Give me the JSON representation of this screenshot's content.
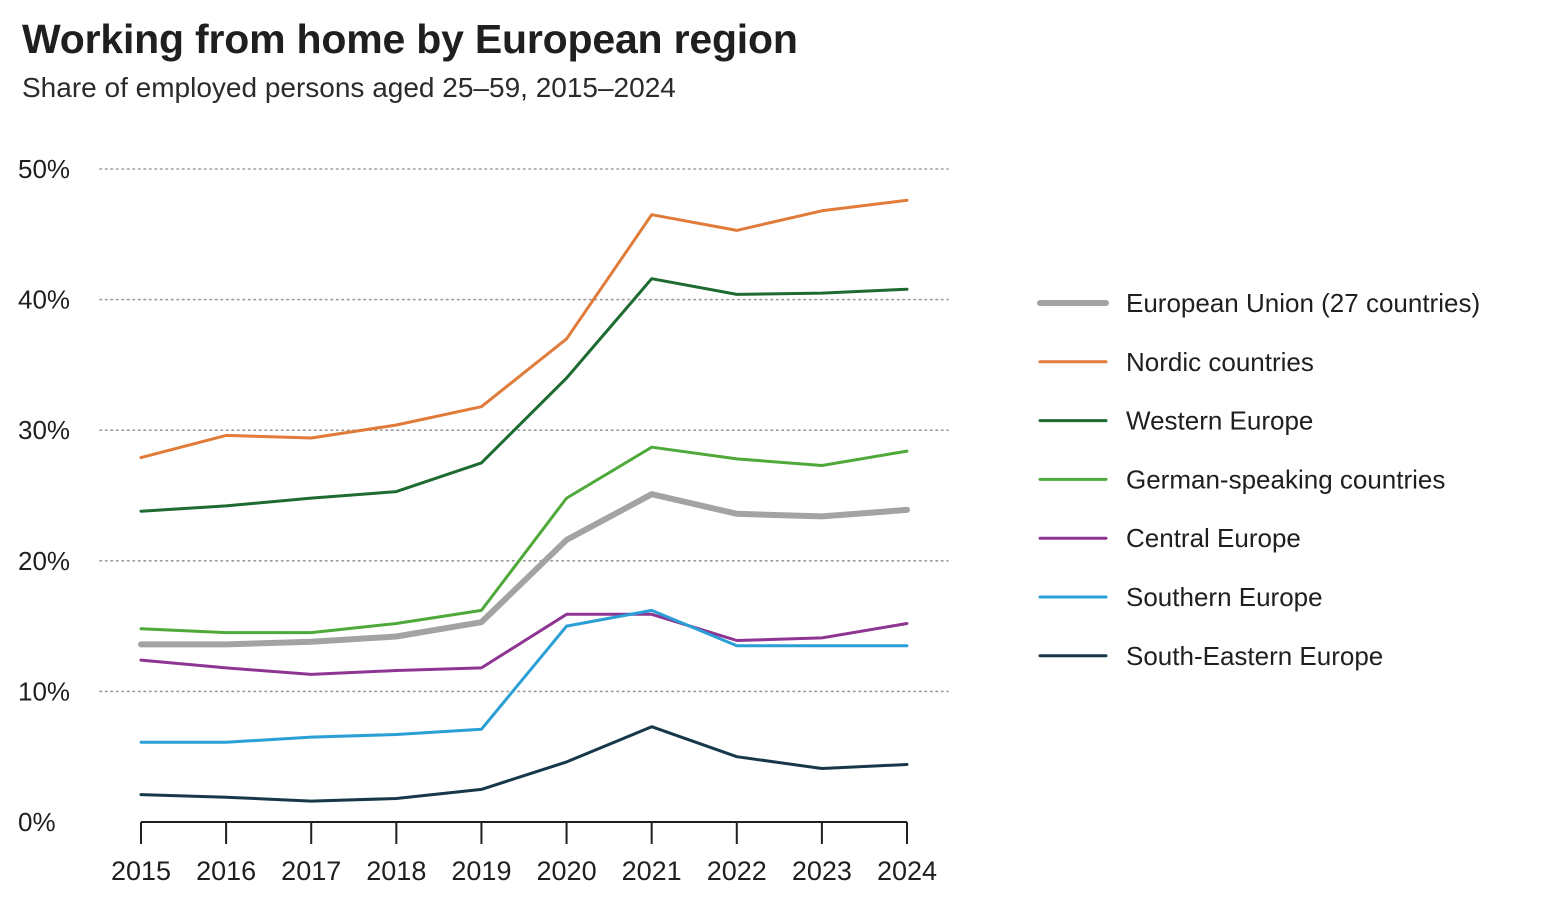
{
  "chart_data": {
    "type": "line",
    "title": "Working from home by European region",
    "subtitle": "Share of employed persons aged 25–59, 2015–2024",
    "xlabel": "",
    "ylabel": "",
    "x": [
      "2015",
      "2016",
      "2017",
      "2018",
      "2019",
      "2020",
      "2021",
      "2022",
      "2023",
      "2024"
    ],
    "ylim": [
      0,
      50
    ],
    "yticks": [
      0,
      10,
      20,
      30,
      40,
      50
    ],
    "ytick_labels": [
      "0%",
      "10%",
      "20%",
      "30%",
      "40%",
      "50%"
    ],
    "grid": "horizontal dotted",
    "legend_position": "right",
    "series": [
      {
        "name": "European Union (27 countries)",
        "color": "#a3a3a3",
        "width": 6,
        "values": [
          13.6,
          13.6,
          13.8,
          14.2,
          15.3,
          21.6,
          25.1,
          23.6,
          23.4,
          23.9
        ]
      },
      {
        "name": "Nordic countries",
        "color": "#e07b39",
        "width": 3,
        "values": [
          27.9,
          29.6,
          29.4,
          30.4,
          31.8,
          37.0,
          46.5,
          45.3,
          46.8,
          47.6
        ]
      },
      {
        "name": "Western Europe",
        "color": "#1e6b32",
        "width": 3,
        "values": [
          23.8,
          24.2,
          24.8,
          25.3,
          27.5,
          34.0,
          41.6,
          40.4,
          40.5,
          40.8
        ]
      },
      {
        "name": "German-speaking countries",
        "color": "#4fa93a",
        "width": 3,
        "values": [
          14.8,
          14.5,
          14.5,
          15.2,
          16.2,
          24.8,
          28.7,
          27.8,
          27.3,
          28.4
        ]
      },
      {
        "name": "Central Europe",
        "color": "#8e3593",
        "width": 3,
        "values": [
          12.4,
          11.8,
          11.3,
          11.6,
          11.8,
          15.9,
          15.9,
          13.9,
          14.1,
          15.2
        ]
      },
      {
        "name": "Southern Europe",
        "color": "#2a9fd6",
        "width": 3,
        "values": [
          6.1,
          6.1,
          6.5,
          6.7,
          7.1,
          15.0,
          16.2,
          13.5,
          13.5,
          13.5
        ]
      },
      {
        "name": "South-Eastern Europe",
        "color": "#173849",
        "width": 3,
        "values": [
          2.1,
          1.9,
          1.6,
          1.8,
          2.5,
          4.6,
          7.3,
          5.0,
          4.1,
          4.4
        ]
      }
    ]
  }
}
